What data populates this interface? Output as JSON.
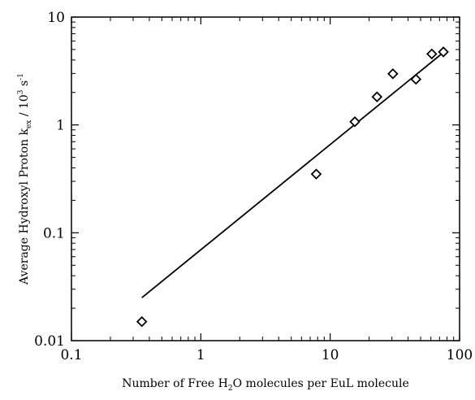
{
  "chart_data": {
    "type": "scatter",
    "title": "",
    "xlabel": {
      "prefix": "Number of Free H",
      "sub": "2",
      "suffix": "O molecules per EuL molecule"
    },
    "ylabel": {
      "prefix": "Average Hydroxyl Proton k",
      "sub": "ex",
      "middle": " / 10",
      "sup1": "3",
      "middle2": " s",
      "sup2": "-1"
    },
    "x_scale": "log",
    "y_scale": "log",
    "xlim": [
      0.1,
      100
    ],
    "ylim": [
      0.01,
      10
    ],
    "x_ticks": [
      0.1,
      1,
      10,
      100
    ],
    "x_tick_labels": [
      "0.1",
      "1",
      "10",
      "100"
    ],
    "y_ticks": [
      0.01,
      0.1,
      1,
      10
    ],
    "y_tick_labels": [
      "0.01",
      "0.1",
      "1",
      "10"
    ],
    "grid": false,
    "legend": "none",
    "marker": "open-diamond",
    "color": "#000000",
    "points": [
      {
        "x": 0.35,
        "y": 0.015
      },
      {
        "x": 7.8,
        "y": 0.35
      },
      {
        "x": 15.5,
        "y": 1.07
      },
      {
        "x": 23,
        "y": 1.82
      },
      {
        "x": 30.5,
        "y": 2.98
      },
      {
        "x": 46,
        "y": 2.65
      },
      {
        "x": 61,
        "y": 4.55
      },
      {
        "x": 75,
        "y": 4.75
      }
    ],
    "fit_line": {
      "x": [
        0.35,
        75
      ],
      "y": [
        0.025,
        4.7
      ]
    }
  }
}
